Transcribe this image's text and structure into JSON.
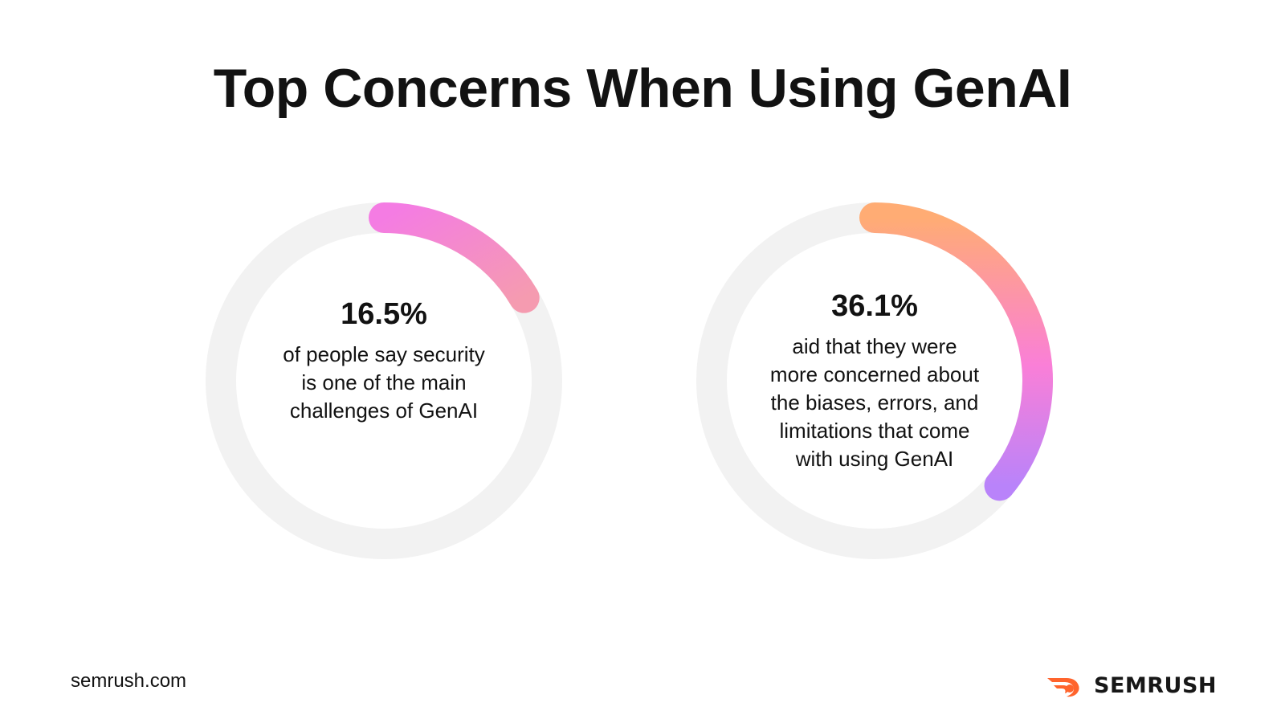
{
  "title": "Top Concerns When Using GenAI",
  "chart_data": [
    {
      "type": "pie",
      "variant": "donut",
      "value": 16.5,
      "value_label": "16.5%",
      "caption": "of people say security\nis one of the main\nchallenges of GenAI",
      "range": [
        0,
        100
      ],
      "gradient": [
        "#F47CE3",
        "#F59BB0"
      ]
    },
    {
      "type": "pie",
      "variant": "donut",
      "value": 36.1,
      "value_label": "36.1%",
      "caption": "aid that they were\nmore concerned about\nthe biases, errors, and\nlimitations that come\nwith using GenAI",
      "range": [
        0,
        100
      ],
      "gradient": [
        "#FFAC74",
        "#FA7FD7",
        "#B983FA"
      ]
    }
  ],
  "colors": {
    "track": "#F2F2F2",
    "text": "#121212",
    "brand_orange": "#FF642D"
  },
  "footer": {
    "site": "semrush.com",
    "brand_name": "SEMRUSH",
    "brand_icon": "semrush-fireball-icon"
  }
}
